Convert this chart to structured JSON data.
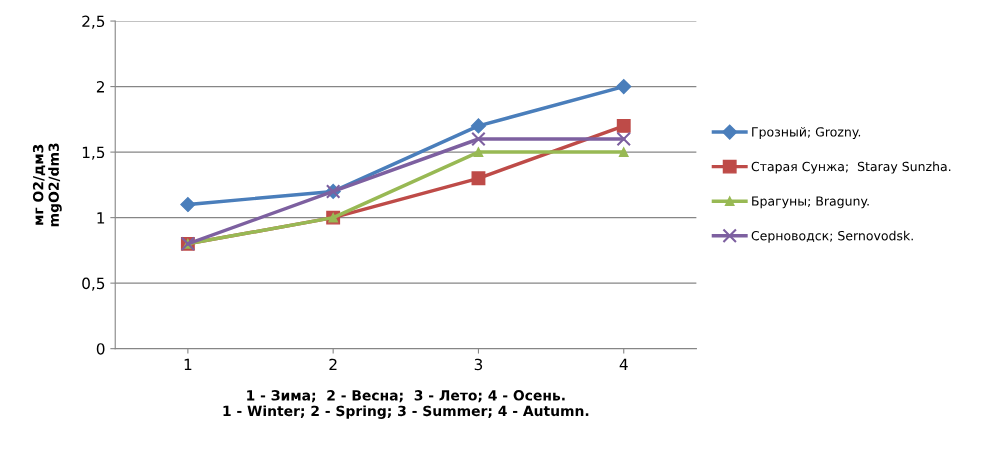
{
  "chart_data": {
    "type": "line",
    "categories": [
      "1",
      "2",
      "3",
      "4"
    ],
    "xlabel": "1 - Зима;  2 - Весна;  3 - Лето; 4 - Осень.\n1 - Winter; 2 - Spring; 3 - Summer; 4 - Autumn.",
    "ylabel": "мг O2/дм3\nmgO2/dm3",
    "ylim": [
      0,
      2.5
    ],
    "yticks": [
      0,
      {
        "value": 0.5,
        "label": "0,5"
      },
      1,
      {
        "value": 1.5,
        "label": "1,5"
      },
      2,
      {
        "value": 2.5,
        "label": "2,5"
      }
    ],
    "grid": "y",
    "legend": "right",
    "series": [
      {
        "name": "Грозный; Grozny.",
        "color": "#4a7ebb",
        "marker": "diamond",
        "values": [
          1.1,
          1.2,
          1.7,
          2.0
        ]
      },
      {
        "name": "Старая Сунжа;  Staray Sunzha.",
        "color": "#be4b48",
        "marker": "square",
        "values": [
          0.8,
          1.0,
          1.3,
          1.7
        ]
      },
      {
        "name": "Брагуны; Braguny.",
        "color": "#98b954",
        "marker": "triangle",
        "values": [
          0.8,
          1.0,
          1.5,
          1.5
        ]
      },
      {
        "name": "Серноводск; Sernovodsk.",
        "color": "#7d60a0",
        "marker": "cross",
        "values": [
          0.8,
          1.2,
          1.6,
          1.6
        ]
      }
    ]
  }
}
